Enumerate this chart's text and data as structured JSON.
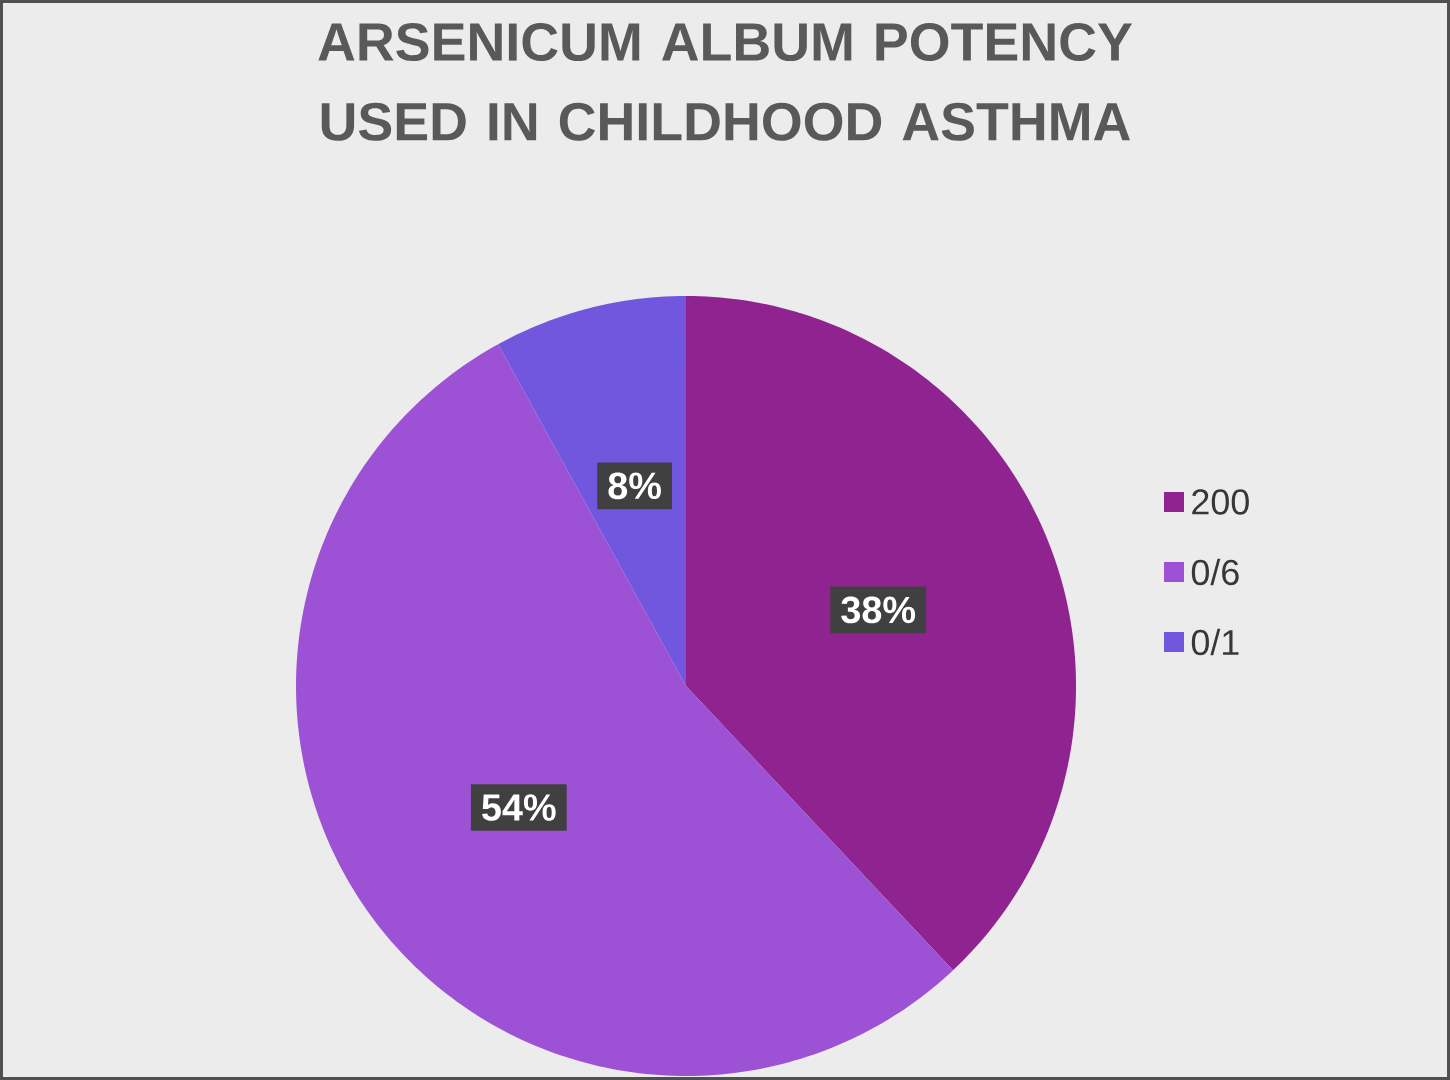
{
  "chart_data": {
    "type": "pie",
    "title": "ARSENICUM ALBUM POTENCY USED IN CHILDHOOD  ASTHMA",
    "categories": [
      "200",
      "0/6",
      "0/1"
    ],
    "values": [
      38,
      54,
      8
    ],
    "value_labels": [
      "38%",
      "54%",
      "8%"
    ],
    "colors": [
      "#8f2390",
      "#9d52d6",
      "#7057de"
    ],
    "legend": "right"
  }
}
